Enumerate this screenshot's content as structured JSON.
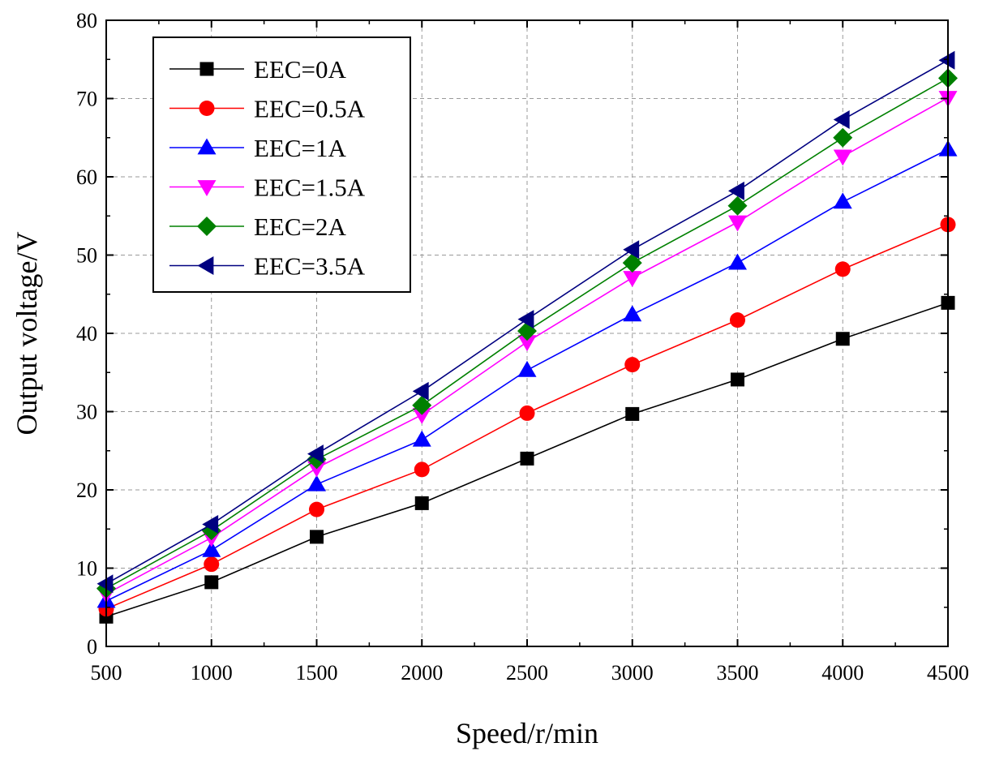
{
  "chart_data": {
    "type": "line",
    "title": "",
    "xlabel": "Speed/r/min",
    "ylabel": "Output voltage/V",
    "xlim": [
      500,
      4500
    ],
    "ylim": [
      0,
      80
    ],
    "x": [
      500,
      1000,
      1500,
      2000,
      2500,
      3000,
      3500,
      4000,
      4500
    ],
    "x_ticks": [
      "500",
      "1000",
      "1500",
      "2000",
      "2500",
      "3000",
      "3500",
      "4000",
      "4500"
    ],
    "y_ticks": [
      "0",
      "10",
      "20",
      "30",
      "40",
      "50",
      "60",
      "70",
      "80"
    ],
    "grid": true,
    "legend_position": "top-left",
    "series": [
      {
        "name": "EEC=0A",
        "color": "#000000",
        "marker": "square",
        "values": [
          3.8,
          8.2,
          14.0,
          18.3,
          24.0,
          29.7,
          34.1,
          39.3,
          43.9
        ]
      },
      {
        "name": "EEC=0.5A",
        "color": "#ff0000",
        "marker": "circle",
        "values": [
          4.8,
          10.5,
          17.5,
          22.6,
          29.8,
          36.0,
          41.7,
          48.2,
          53.9
        ]
      },
      {
        "name": "EEC=1A",
        "color": "#0000ff",
        "marker": "triangle-up",
        "values": [
          5.8,
          12.3,
          20.7,
          26.4,
          35.3,
          42.4,
          49.0,
          56.8,
          63.5
        ]
      },
      {
        "name": "EEC=1.5A",
        "color": "#ff00ff",
        "marker": "triangle-down",
        "values": [
          6.7,
          13.9,
          22.8,
          29.6,
          38.9,
          47.1,
          54.2,
          62.6,
          70.1
        ]
      },
      {
        "name": "EEC=2A",
        "color": "#008000",
        "marker": "diamond",
        "values": [
          7.4,
          14.8,
          23.9,
          30.8,
          40.3,
          49.0,
          56.3,
          65.0,
          72.6
        ]
      },
      {
        "name": "EEC=3.5A",
        "color": "#000080",
        "marker": "triangle-left",
        "values": [
          8.0,
          15.6,
          24.6,
          32.6,
          41.8,
          50.7,
          58.2,
          67.3,
          74.9
        ]
      }
    ]
  }
}
